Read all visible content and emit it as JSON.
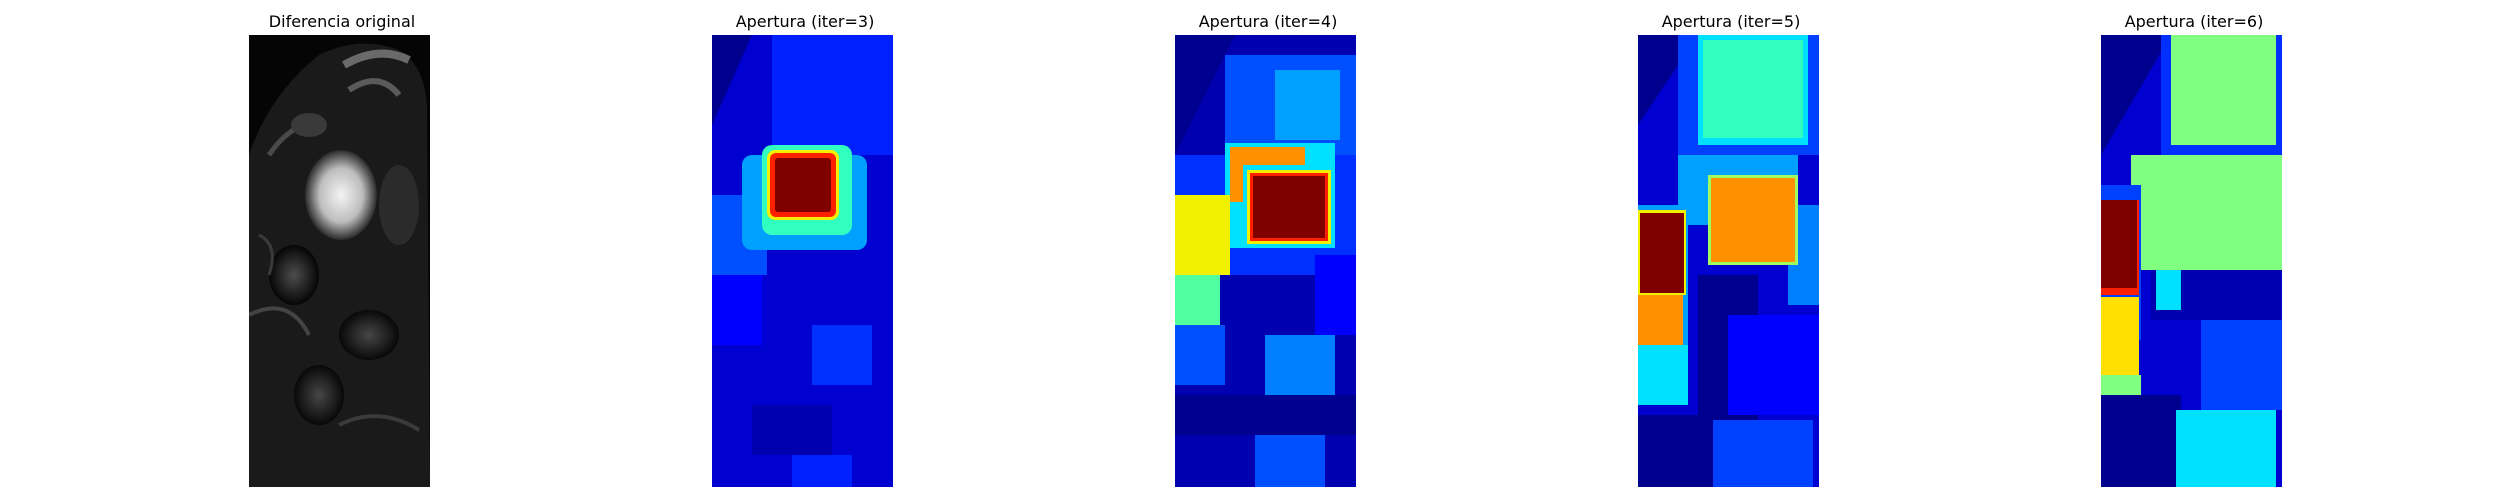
{
  "panels": [
    {
      "title": "Diferencia original",
      "kind": "grayscale"
    },
    {
      "title": "Apertura (iter=3)",
      "kind": "jet"
    },
    {
      "title": "Apertura (iter=4)",
      "kind": "jet"
    },
    {
      "title": "Apertura (iter=5)",
      "kind": "jet"
    },
    {
      "title": "Apertura (iter=6)",
      "kind": "jet"
    }
  ],
  "colors": {
    "background": "#ffffff",
    "dark_navy": "#00008f",
    "blue": "#0000ff",
    "mid_blue": "#0050ff",
    "sky_blue": "#00a0ff",
    "cyan": "#00e0ff",
    "aquamarine": "#30ffc0",
    "light_green": "#80ff80",
    "yellow": "#f0f000",
    "orange": "#ff9000",
    "red": "#ff2000",
    "dark_red": "#800000"
  }
}
